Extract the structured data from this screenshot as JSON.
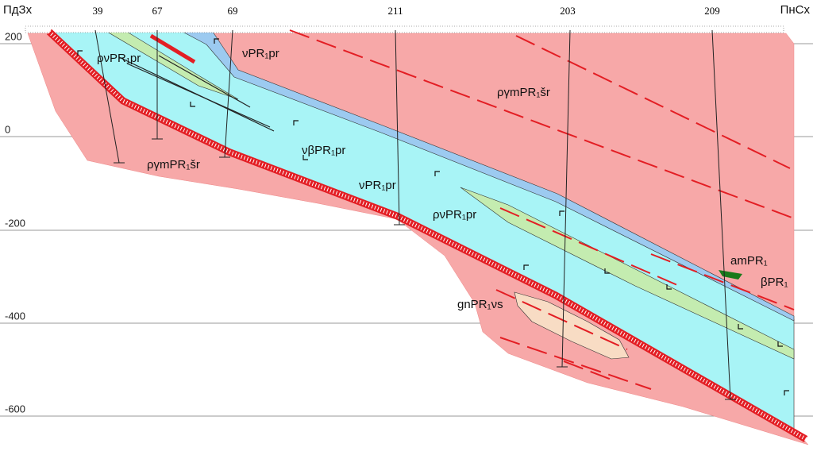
{
  "directions": {
    "left": "ПдЗх",
    "right": "ПнСх"
  },
  "depth_labels": [
    "200",
    "0",
    "-200",
    "-400",
    "-600"
  ],
  "wells": [
    "39",
    "67",
    "69",
    "211",
    "203",
    "209"
  ],
  "units": [
    "ρνPR₁pr",
    "νPR₁pr",
    "ργmPR₁šr",
    "νβPR₁pr",
    "ργmPR₁šr",
    "νPR₁pr",
    "ρνPR₁pr",
    "amPR₁",
    "βPR₁",
    "gnPR₁νs"
  ]
}
